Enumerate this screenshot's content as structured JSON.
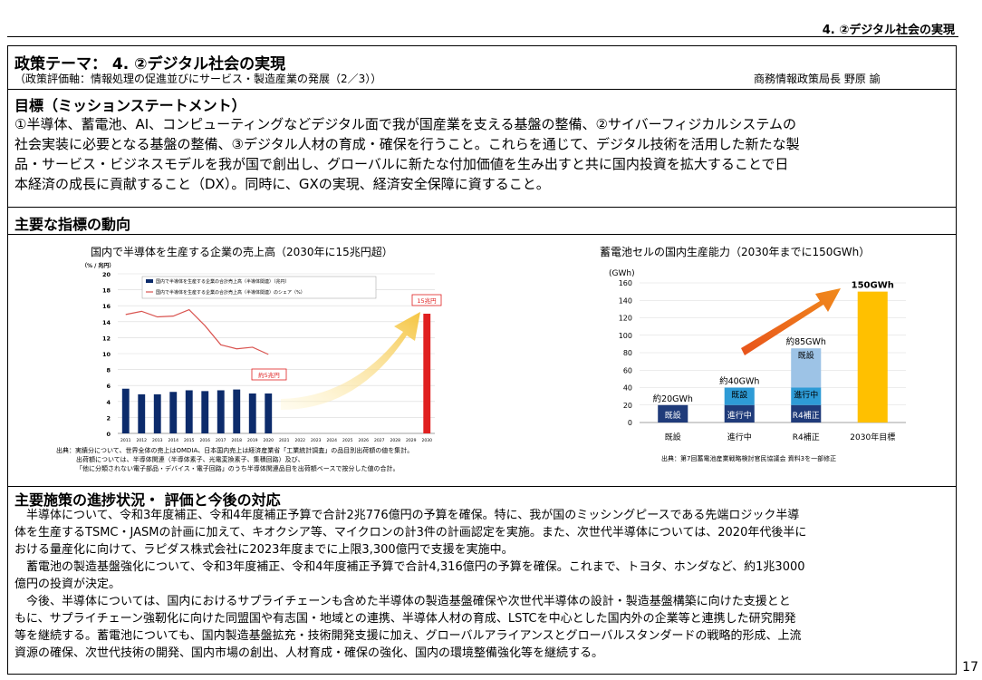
{
  "header": {
    "section": "4. ②デジタル社会の実現"
  },
  "theme": {
    "title": "政策テーマ： 4. ②デジタル社会の実現",
    "axis": "（政策評価軸：情報処理の促進並びにサービス・製造産業の発展（2／3））",
    "owner": "商務情報政策局長 野原 諭"
  },
  "mission": {
    "heading": "目標（ミッションステートメント）",
    "lines": [
      "①半導体、蓄電池、AI、コンピューティングなどデジタル面で我が国産業を支える基盤の整備、②サイバーフィジカルシステムの",
      "社会実装に必要となる基盤の整備、③デジタル人材の育成・確保を行うこと。これらを通じて、デジタル技術を活用した新たな製",
      "品・サービス・ビジネスモデルを我が国で創出し、グローバルに新たな付加価値を生み出すと共に国内投資を拡大することで日",
      "本経済の成長に貢献すること（DX）。同時に、GXの実現、経済安全保障に資すること。"
    ]
  },
  "indicators": {
    "heading": "主要な指標の動向"
  },
  "chart_data": [
    {
      "type": "bar",
      "title": "国内で半導体を生産する企業の売上高（2030年に15兆円超）",
      "ylabel": "（% / 兆円）",
      "ylim": [
        0,
        20
      ],
      "yticks": [
        0,
        2,
        4,
        6,
        8,
        10,
        12,
        14,
        16,
        18,
        20
      ],
      "categories": [
        "2011",
        "2012",
        "2013",
        "2014",
        "2015",
        "2016",
        "2017",
        "2018",
        "2019",
        "2020",
        "2021",
        "2022",
        "2023",
        "2024",
        "2025",
        "2026",
        "2027",
        "2028",
        "2029",
        "2030"
      ],
      "series": [
        {
          "name": "国内で半導体を生産する企業の合計売上高（半導体関連）（兆円）",
          "kind": "bar",
          "values": [
            5.6,
            4.9,
            4.9,
            5.2,
            5.4,
            5.3,
            5.4,
            5.5,
            5.0,
            5.0,
            null,
            null,
            null,
            null,
            null,
            null,
            null,
            null,
            null,
            null
          ]
        },
        {
          "name": "国内で半導体を生産する企業の合計売上高（半導体関連）のシェア（%）",
          "kind": "line",
          "values": [
            14.9,
            15.3,
            14.6,
            14.7,
            15.5,
            13.5,
            11.1,
            10.6,
            10.8,
            9.9,
            null,
            null,
            null,
            null,
            null,
            null,
            null,
            null,
            null,
            null
          ]
        },
        {
          "name": "2030",
          "kind": "bar-target",
          "values": [
            null,
            null,
            null,
            null,
            null,
            null,
            null,
            null,
            null,
            null,
            null,
            null,
            null,
            null,
            null,
            null,
            null,
            null,
            null,
            15
          ]
        }
      ],
      "annotations": [
        "約5兆円",
        "15兆円"
      ],
      "source": [
        "出典：実績分について、世界全体の売上はOMDIA、日本国内売上は経済産業省「工業統計調査」の品目別出荷額の値を集計。",
        "出荷額については、半導体関連（半導体素子、光電変換素子、集積回路）及び、",
        "「他に分類されない電子部品・デバイス・電子回路」のうち半導体関連品目を出荷額ベースで按分した値の合計。"
      ]
    },
    {
      "type": "bar",
      "title": "蓄電池セルの国内生産能力（2030年までに150GWh）",
      "ylabel": "(GWh)",
      "ylim": [
        0,
        160
      ],
      "yticks": [
        0,
        20,
        40,
        60,
        80,
        100,
        120,
        140,
        160
      ],
      "categories": [
        "既設",
        "進行中",
        "R4補正",
        "2030年目標"
      ],
      "series": [
        {
          "name": "既設",
          "values": [
            20,
            20,
            20,
            null
          ],
          "color": "#1f3b7a"
        },
        {
          "name": "進行中",
          "values": [
            null,
            20,
            20,
            null
          ],
          "color": "#2e9bd6"
        },
        {
          "name": "R4補正",
          "values": [
            null,
            null,
            45,
            null
          ],
          "color": "#9dc3e6"
        },
        {
          "name": "2030年目標",
          "values": [
            null,
            null,
            null,
            150
          ],
          "color": "#ffc000"
        }
      ],
      "value_labels": [
        "約20GWh",
        "約40GWh",
        "約85GWh",
        "150GWh"
      ],
      "segment_labels": [
        "既設",
        "進行中",
        "既設",
        "R4補正",
        "進行中",
        "既設"
      ],
      "source": "出典：第7回蓄電池産業戦略検討官民協議会 資料3を一部修正"
    }
  ],
  "progress": {
    "heading": "主要施策の進捗状況・ 評価と今後の対応",
    "lines": [
      "　半導体について、令和3年度補正、令和4年度補正予算で合計2兆776億円の予算を確保。特に、我が国のミッシングピースである先端ロジック半導",
      "体を生産するTSMC・JASMの計画に加えて、キオクシア等、マイクロンの計3件の計画認定を実施。また、次世代半導体については、2020年代後半に",
      "おける量産化に向けて、ラピダス株式会社に2023年度までに上限3,300億円で支援を実施中。",
      "　蓄電池の製造基盤強化について、令和3年度補正、令和4年度補正予算で合計4,316億円の予算を確保。これまで、トヨタ、ホンダなど、約1兆3000",
      "億円の投資が決定。",
      "　今後、半導体については、国内におけるサプライチェーンも含めた半導体の製造基盤確保や次世代半導体の設計・製造基盤構築に向けた支援とと",
      "もに、サプライチェーン強靭化に向けた同盟国や有志国・地域との連携、半導体人材の育成、LSTCを中心とした国内外の企業等と連携した研究開発",
      "等を継続する。蓄電池についても、国内製造基盤拡充・技術開発支援に加え、グローバルアライアンスとグローバルスタンダードの戦略的形成、上流",
      "資源の確保、次世代技術の開発、国内市場の創出、人材育成・確保の強化、国内の環境整備強化等を継続する。"
    ]
  },
  "page_number": "17"
}
